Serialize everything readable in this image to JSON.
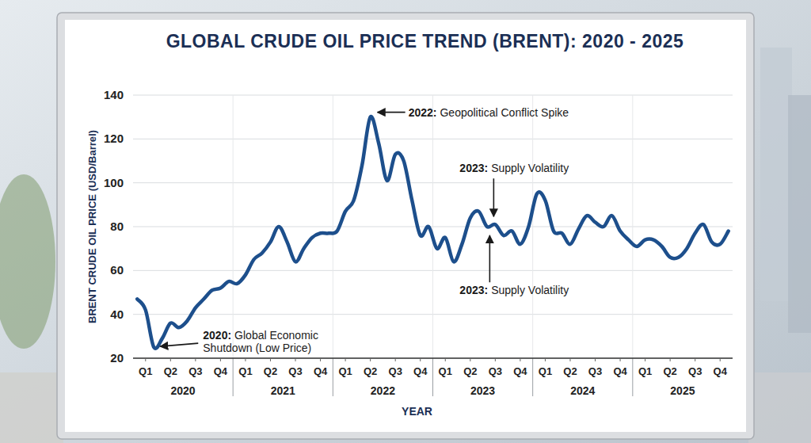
{
  "chart_data": {
    "type": "line",
    "title": "GLOBAL CRUDE OIL PRICE TREND (BRENT): 2020 - 2025",
    "x_label": "YEAR",
    "y_label": "BRENT CRUDE OIL PRICE (USD/Barrel)",
    "categories": [
      null,
      "Q1",
      null,
      null,
      "Q2",
      null,
      null,
      "Q3",
      null,
      null,
      "Q4",
      null,
      null,
      "Q1",
      null,
      null,
      "Q2",
      null,
      null,
      "Q3",
      null,
      null,
      "Q4",
      null,
      null,
      "Q1",
      null,
      null,
      "Q2",
      null,
      null,
      "Q3",
      null,
      null,
      "Q4",
      null,
      null,
      "Q1",
      null,
      null,
      "Q2",
      null,
      null,
      "Q3",
      null,
      null,
      "Q4",
      null,
      null,
      "Q1",
      null,
      null,
      "Q2",
      null,
      null,
      "Q3",
      null,
      null,
      "Q4",
      null,
      null,
      "Q1",
      null,
      null,
      "Q2",
      null,
      null,
      "Q3",
      null,
      null,
      "Q4",
      null
    ],
    "x_groups": [
      "2020",
      "2021",
      "2022",
      "2023",
      "2024",
      "2025"
    ],
    "values": [
      47,
      42,
      25,
      29,
      36,
      34,
      37,
      43,
      47,
      51,
      52,
      55,
      54,
      58,
      65,
      68,
      73,
      80,
      73,
      64,
      70,
      75,
      77,
      77,
      78,
      87,
      92,
      108,
      130,
      118,
      101,
      113,
      110,
      92,
      76,
      80,
      70,
      75,
      64,
      72,
      84,
      87,
      80,
      81,
      76,
      78,
      72,
      80,
      95,
      92,
      78,
      77,
      72,
      79,
      85,
      82,
      80,
      85,
      78,
      74,
      71,
      74,
      74,
      71,
      66,
      66,
      70,
      77,
      81,
      73,
      72,
      78
    ],
    "color": "#1d4f8c",
    "ylim": [
      20,
      140
    ],
    "yticks": [
      20,
      40,
      60,
      80,
      100,
      120,
      140
    ],
    "grid": true,
    "annotations": [
      {
        "label": "2020:",
        "text": [
          "Global Economic",
          "Shutdown (Low Price)"
        ],
        "point_index": 2,
        "value": 25
      },
      {
        "label": "2022:",
        "text": [
          "Geopolitical Conflict Spike"
        ],
        "point_index": 28,
        "value": 130
      },
      {
        "label": "2023:",
        "text": [
          "Supply Volatility"
        ],
        "point_index": 43,
        "value": 81
      },
      {
        "label": "2023:",
        "text": [
          "Supply Volatility"
        ],
        "point_index": 43,
        "value": 81
      }
    ]
  }
}
